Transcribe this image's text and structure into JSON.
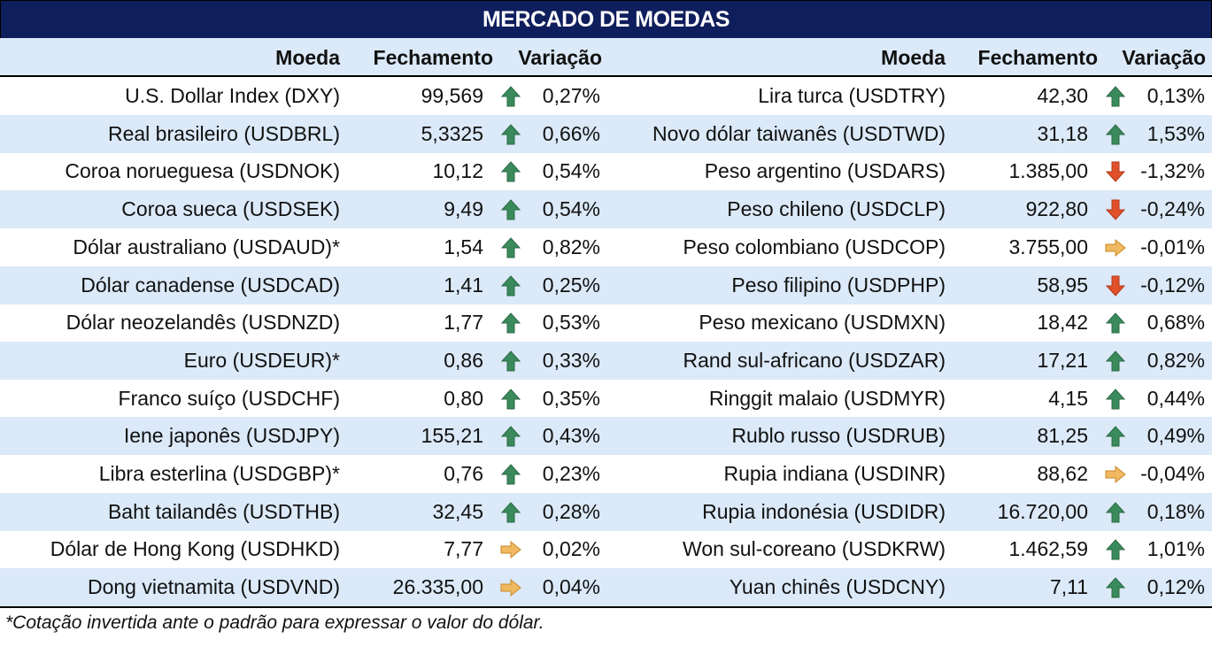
{
  "title": "MERCADO DE MOEDAS",
  "headers": {
    "moeda": "Moeda",
    "fechamento": "Fechamento",
    "variacao": "Variação"
  },
  "colors": {
    "title_bg": "#0f1e5c",
    "stripe": "#dbe9f8",
    "up": "#3a8a5c",
    "down": "#e0502a",
    "flat": "#f0b860"
  },
  "left_rows": [
    {
      "name": "U.S. Dollar Index (DXY)",
      "close": "99,569",
      "trend": "up-arrow-icon",
      "change": "0,27%"
    },
    {
      "name": "Real brasileiro (USDBRL)",
      "close": "5,3325",
      "trend": "up-arrow-icon",
      "change": "0,66%"
    },
    {
      "name": "Coroa norueguesa (USDNOK)",
      "close": "10,12",
      "trend": "up-arrow-icon",
      "change": "0,54%"
    },
    {
      "name": "Coroa sueca (USDSEK)",
      "close": "9,49",
      "trend": "up-arrow-icon",
      "change": "0,54%"
    },
    {
      "name": "Dólar australiano (USDAUD)*",
      "close": "1,54",
      "trend": "up-arrow-icon",
      "change": "0,82%"
    },
    {
      "name": "Dólar canadense (USDCAD)",
      "close": "1,41",
      "trend": "up-arrow-icon",
      "change": "0,25%"
    },
    {
      "name": "Dólar neozelandês (USDNZD)",
      "close": "1,77",
      "trend": "up-arrow-icon",
      "change": "0,53%"
    },
    {
      "name": "Euro (USDEUR)*",
      "close": "0,86",
      "trend": "up-arrow-icon",
      "change": "0,33%"
    },
    {
      "name": "Franco suíço (USDCHF)",
      "close": "0,80",
      "trend": "up-arrow-icon",
      "change": "0,35%"
    },
    {
      "name": "Iene japonês (USDJPY)",
      "close": "155,21",
      "trend": "up-arrow-icon",
      "change": "0,43%"
    },
    {
      "name": "Libra esterlina (USDGBP)*",
      "close": "0,76",
      "trend": "up-arrow-icon",
      "change": "0,23%"
    },
    {
      "name": "Baht tailandês (USDTHB)",
      "close": "32,45",
      "trend": "up-arrow-icon",
      "change": "0,28%"
    },
    {
      "name": "Dólar de Hong Kong (USDHKD)",
      "close": "7,77",
      "trend": "right-arrow-icon",
      "change": "0,02%"
    },
    {
      "name": "Dong vietnamita (USDVND)",
      "close": "26.335,00",
      "trend": "right-arrow-icon",
      "change": "0,04%"
    }
  ],
  "right_rows": [
    {
      "name": "Lira turca (USDTRY)",
      "close": "42,30",
      "trend": "up-arrow-icon",
      "change": "0,13%"
    },
    {
      "name": "Novo dólar taiwanês (USDTWD)",
      "close": "31,18",
      "trend": "up-arrow-icon",
      "change": "1,53%"
    },
    {
      "name": "Peso argentino (USDARS)",
      "close": "1.385,00",
      "trend": "down-arrow-icon",
      "change": "-1,32%"
    },
    {
      "name": "Peso chileno (USDCLP)",
      "close": "922,80",
      "trend": "down-arrow-icon",
      "change": "-0,24%"
    },
    {
      "name": "Peso colombiano (USDCOP)",
      "close": "3.755,00",
      "trend": "right-arrow-icon",
      "change": "-0,01%"
    },
    {
      "name": "Peso filipino (USDPHP)",
      "close": "58,95",
      "trend": "down-arrow-icon",
      "change": "-0,12%"
    },
    {
      "name": "Peso mexicano (USDMXN)",
      "close": "18,42",
      "trend": "up-arrow-icon",
      "change": "0,68%"
    },
    {
      "name": "Rand sul-africano (USDZAR)",
      "close": "17,21",
      "trend": "up-arrow-icon",
      "change": "0,82%"
    },
    {
      "name": "Ringgit malaio (USDMYR)",
      "close": "4,15",
      "trend": "up-arrow-icon",
      "change": "0,44%"
    },
    {
      "name": "Rublo russo (USDRUB)",
      "close": "81,25",
      "trend": "up-arrow-icon",
      "change": "0,49%"
    },
    {
      "name": "Rupia indiana (USDINR)",
      "close": "88,62",
      "trend": "right-arrow-icon",
      "change": "-0,04%"
    },
    {
      "name": "Rupia indonésia (USDIDR)",
      "close": "16.720,00",
      "trend": "up-arrow-icon",
      "change": "0,18%"
    },
    {
      "name": "Won sul-coreano (USDKRW)",
      "close": "1.462,59",
      "trend": "up-arrow-icon",
      "change": "1,01%"
    },
    {
      "name": "Yuan chinês (USDCNY)",
      "close": "7,11",
      "trend": "up-arrow-icon",
      "change": "0,12%"
    }
  ],
  "footnote": "*Cotação invertida ante o padrão para expressar o valor do dólar."
}
